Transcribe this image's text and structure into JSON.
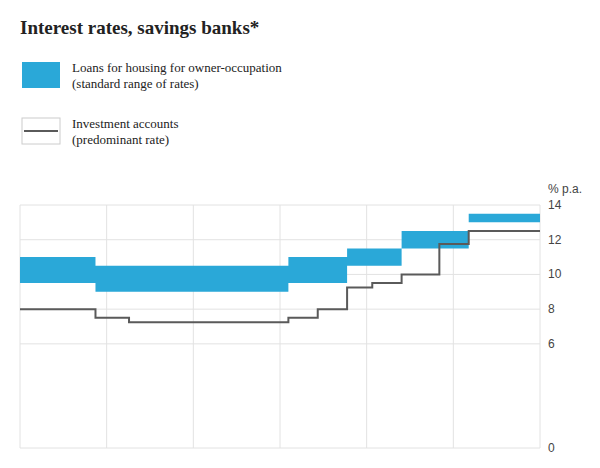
{
  "chart_data": {
    "type": "line",
    "title": "Interest rates, savings banks*",
    "ylabel": "% p.a.",
    "x": [
      0.0,
      0.9,
      0.9,
      1.3,
      1.3,
      3.2,
      3.2,
      3.55,
      3.55,
      3.9,
      3.9,
      4.2,
      4.2,
      4.55,
      4.55,
      5.0,
      5.0,
      5.35,
      5.35,
      5.75,
      5.75,
      6.2
    ],
    "xlim": [
      0,
      6.2
    ],
    "xticks": [
      0,
      1.0333333333333334,
      2.066666666666667,
      3.1,
      4.133333333333334,
      5.166666666666667,
      6.2
    ],
    "ylim": [
      0,
      14
    ],
    "yticks": [
      0,
      6,
      8,
      10,
      12,
      14
    ],
    "grid": true,
    "tick_labels": "y",
    "series": [
      {
        "name": "Loans for housing for owner-occupation (standard range of rates)",
        "type": "band",
        "color": "#2aa8d8",
        "values": [
          11.0,
          11.0,
          10.5,
          10.5,
          10.5,
          10.5,
          11.0,
          11.0,
          11.0,
          11.0,
          11.5,
          11.5,
          11.5,
          11.5,
          12.5,
          12.5,
          12.5,
          12.5,
          13.5,
          13.5,
          13.5,
          13.5
        ],
        "low": [
          9.5,
          9.5,
          9.0,
          9.0,
          9.0,
          9.0,
          9.5,
          9.5,
          9.5,
          9.5,
          10.5,
          10.5,
          10.5,
          10.5,
          11.5,
          11.5,
          11.5,
          11.5,
          13.0,
          13.0,
          13.0,
          13.0
        ]
      },
      {
        "name": "Investment accounts (predominant rate)",
        "type": "line",
        "color": "#5a5a5a",
        "values": [
          8.0,
          8.0,
          7.5,
          7.5,
          7.25,
          7.25,
          7.5,
          7.5,
          8.0,
          8.0,
          9.25,
          9.25,
          9.5,
          9.5,
          10.0,
          10.0,
          11.75,
          11.75,
          12.5,
          12.5,
          12.5,
          12.5
        ]
      }
    ]
  }
}
